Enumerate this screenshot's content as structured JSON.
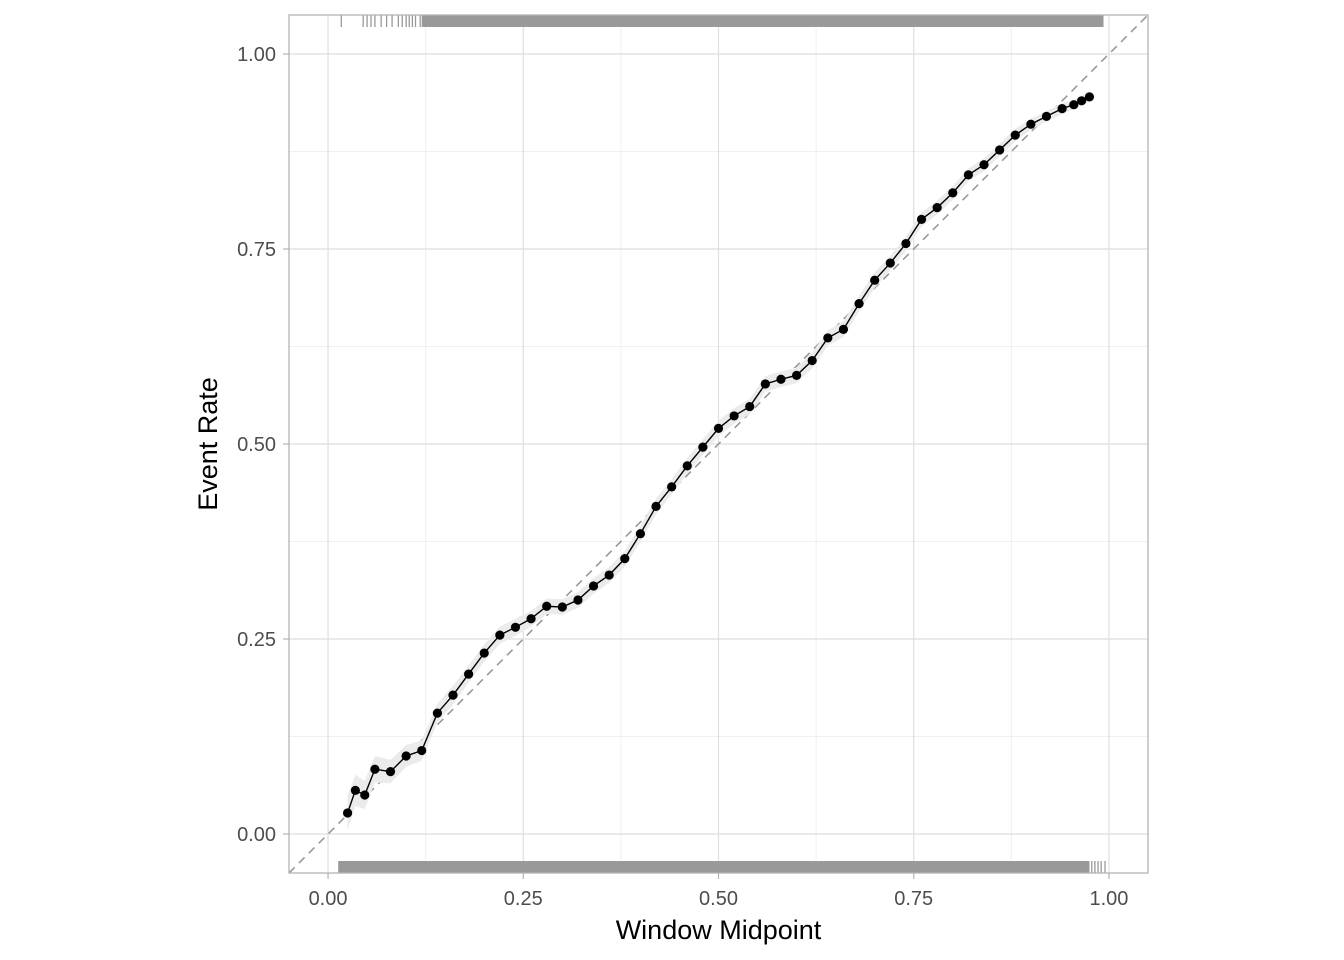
{
  "chart_data": {
    "type": "line",
    "title": "",
    "xlabel": "Window Midpoint",
    "ylabel": "Event Rate",
    "xlim": [
      -0.05,
      1.05
    ],
    "ylim": [
      -0.05,
      1.05
    ],
    "x_ticks": [
      0,
      0.25,
      0.5,
      0.75,
      1
    ],
    "x_tick_labels": [
      "0.00",
      "0.25",
      "0.50",
      "0.75",
      "1.00"
    ],
    "y_ticks": [
      0,
      0.25,
      0.5,
      0.75,
      1
    ],
    "y_tick_labels": [
      "0.00",
      "0.25",
      "0.50",
      "0.75",
      "1.00"
    ],
    "grid": true,
    "reference_line": "y = x (dashed)",
    "series": [
      {
        "x": [
          0.025,
          0.035,
          0.047,
          0.06,
          0.08,
          0.1,
          0.12,
          0.14,
          0.16,
          0.18,
          0.2,
          0.22,
          0.24,
          0.26,
          0.28,
          0.3,
          0.32,
          0.34,
          0.36,
          0.38,
          0.4,
          0.42,
          0.44,
          0.46,
          0.48,
          0.5,
          0.52,
          0.54,
          0.56,
          0.58,
          0.6,
          0.62,
          0.64,
          0.66,
          0.68,
          0.7,
          0.72,
          0.74,
          0.76,
          0.78,
          0.8,
          0.82,
          0.84,
          0.86,
          0.88,
          0.9,
          0.92,
          0.94,
          0.955,
          0.965,
          0.975
        ],
        "y": [
          0.027,
          0.056,
          0.05,
          0.083,
          0.08,
          0.1,
          0.107,
          0.155,
          0.178,
          0.205,
          0.232,
          0.255,
          0.265,
          0.276,
          0.292,
          0.291,
          0.3,
          0.318,
          0.332,
          0.353,
          0.385,
          0.42,
          0.445,
          0.472,
          0.496,
          0.52,
          0.536,
          0.548,
          0.577,
          0.583,
          0.588,
          0.607,
          0.636,
          0.647,
          0.68,
          0.71,
          0.732,
          0.757,
          0.788,
          0.803,
          0.822,
          0.845,
          0.858,
          0.877,
          0.896,
          0.91,
          0.92,
          0.93,
          0.935,
          0.94,
          0.945
        ],
        "band_width": [
          0.022,
          0.02,
          0.018,
          0.017,
          0.015,
          0.014,
          0.013,
          0.012,
          0.012,
          0.011,
          0.011,
          0.011,
          0.011,
          0.01,
          0.01,
          0.01,
          0.01,
          0.01,
          0.01,
          0.01,
          0.01,
          0.01,
          0.01,
          0.01,
          0.01,
          0.01,
          0.01,
          0.01,
          0.01,
          0.01,
          0.01,
          0.01,
          0.01,
          0.01,
          0.01,
          0.01,
          0.009,
          0.009,
          0.009,
          0.009,
          0.009,
          0.008,
          0.008,
          0.008,
          0.008,
          0.007,
          0.007,
          0.007,
          0.006,
          0.006,
          0.006
        ],
        "color": "#000000",
        "band_color": "#ebebeb"
      }
    ],
    "rugs": {
      "color": "#999999",
      "top": {
        "sparse": [
          0.017,
          0.045,
          0.05,
          0.055,
          0.06,
          0.068,
          0.075,
          0.082,
          0.09,
          0.095,
          0.1,
          0.104,
          0.108,
          0.112,
          0.118
        ],
        "dense_range": [
          0.12,
          0.993
        ]
      },
      "bottom": {
        "dense_range": [
          0.013,
          0.975
        ],
        "sparse": [
          0.978,
          0.982,
          0.986,
          0.99,
          0.995
        ]
      }
    }
  }
}
